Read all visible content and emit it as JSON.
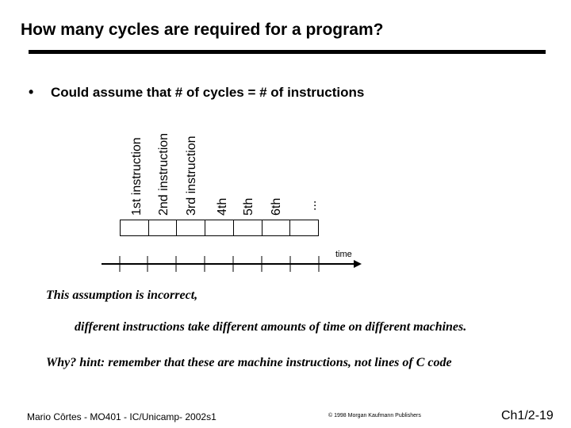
{
  "slide": {
    "title": "How many cycles are required for a program?",
    "bullet_symbol": "•",
    "bullet_text": "Could assume that # of cycles = # of instructions"
  },
  "diagram": {
    "instruction_labels": [
      "1st instruction",
      "2nd instruction",
      "3rd instruction",
      "4th",
      "5th",
      "6th",
      "..."
    ],
    "axis_label": "time"
  },
  "body": {
    "line1": "This assumption is incorrect,",
    "line2": "different instructions take different amounts of time on different machines.",
    "line3": "Why? hint: remember that these are machine instructions, not lines of C code"
  },
  "footer": {
    "author": "Mario Côrtes - MO401 - IC/Unicamp- 2002s1",
    "copyright": "© 1998 Morgan Kaufmann Publishers",
    "page": "Ch1/2-19"
  }
}
